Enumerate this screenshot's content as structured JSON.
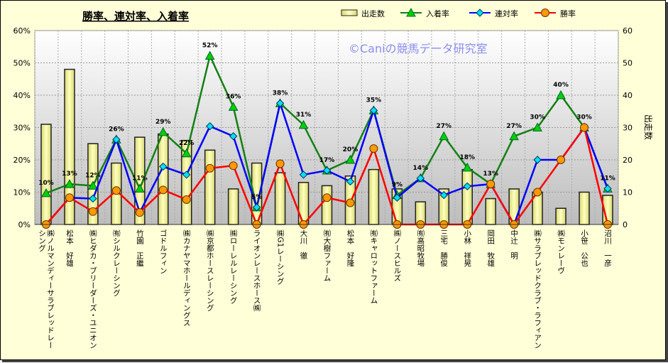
{
  "chart_data": {
    "type": "bar+line",
    "title": "勝率、連対率、入着率",
    "watermark": "©Caniの競馬データ研究室",
    "y_left": {
      "ticks": [
        "0%",
        "10%",
        "20%",
        "30%",
        "40%",
        "50%",
        "60%"
      ],
      "range": [
        0,
        60
      ]
    },
    "y_right": {
      "label": "出走数",
      "ticks": [
        "0",
        "10",
        "20",
        "30",
        "40",
        "50",
        "60"
      ],
      "range": [
        0,
        60
      ]
    },
    "grid": true,
    "legend_position": "top-right",
    "categories": [
      "㈱ノルマンディーサラブレッドレーシング",
      "松本　好雄",
      "㈱ヒダカ・ブリーダーズ・ユニオン",
      "㈲シルクレーシング",
      "竹園　正繼",
      "ゴドルフィン",
      "㈱カナヤマホールディングス",
      "㈱京都ホースレーシング",
      "㈱ローレルレーシング",
      "ライオンレースホース㈱",
      "㈱G1レーシング",
      "大川　徹",
      "㈲大樹ファーム",
      "松本　好隆",
      "㈲キャロットファーム",
      "㈱ノースヒルズ",
      "㈲高昭牧場",
      "三宅　勝俊",
      "小林　祥晃",
      "岡田　牧雄",
      "中辻　明",
      "㈱サラブレッドクラブ・ラフィアン",
      "㈱モンレーヴ",
      "小笹　公也",
      "沼川　一彦"
    ],
    "series": [
      {
        "name": "出走数",
        "type": "bar",
        "color": "#F0F09A",
        "values": [
          31,
          48,
          25,
          19,
          27,
          28,
          26,
          23,
          11,
          19,
          16,
          13,
          12,
          15,
          17,
          11,
          7,
          11,
          17,
          8,
          11,
          10,
          5,
          10,
          9
        ]
      },
      {
        "name": "入着率",
        "type": "line",
        "color": "#138013",
        "marker": "triangle",
        "values": [
          9.7,
          12.5,
          12,
          26.3,
          11.1,
          28.6,
          22,
          52.2,
          36.4,
          5.3,
          37.5,
          30.8,
          16.7,
          20,
          35.3,
          9.1,
          14.3,
          27.3,
          17.6,
          12.5,
          27.3,
          30,
          40,
          30,
          11.1
        ],
        "labels": [
          "10%",
          "13%",
          "12%",
          "26%",
          "11%",
          "29%",
          "22%",
          "52%",
          "36%",
          "5%",
          "38%",
          "31%",
          "17%",
          "20%",
          "35%",
          "9%",
          "14%",
          "27%",
          "18%",
          "13%",
          "27%",
          "30%",
          "40%",
          "30%",
          "11%"
        ]
      },
      {
        "name": "連対率",
        "type": "line",
        "color": "#0000FF",
        "marker": "diamond",
        "values": [
          0,
          8.3,
          8,
          26.3,
          3.7,
          17.9,
          15.4,
          30.4,
          27.3,
          5.3,
          37.5,
          15.4,
          16.7,
          13.3,
          35.3,
          8.3,
          14.3,
          9.1,
          11.8,
          12.5,
          0,
          20,
          20,
          30,
          11.1
        ]
      },
      {
        "name": "勝率",
        "type": "line",
        "color": "#FF0000",
        "marker": "circle",
        "values": [
          0,
          8.3,
          4,
          10.5,
          3.7,
          10.7,
          7.7,
          17.4,
          18.2,
          0,
          18.8,
          0,
          8.3,
          6.7,
          23.5,
          0,
          0,
          0,
          0,
          12.5,
          0,
          10,
          20,
          30,
          0
        ]
      }
    ]
  }
}
